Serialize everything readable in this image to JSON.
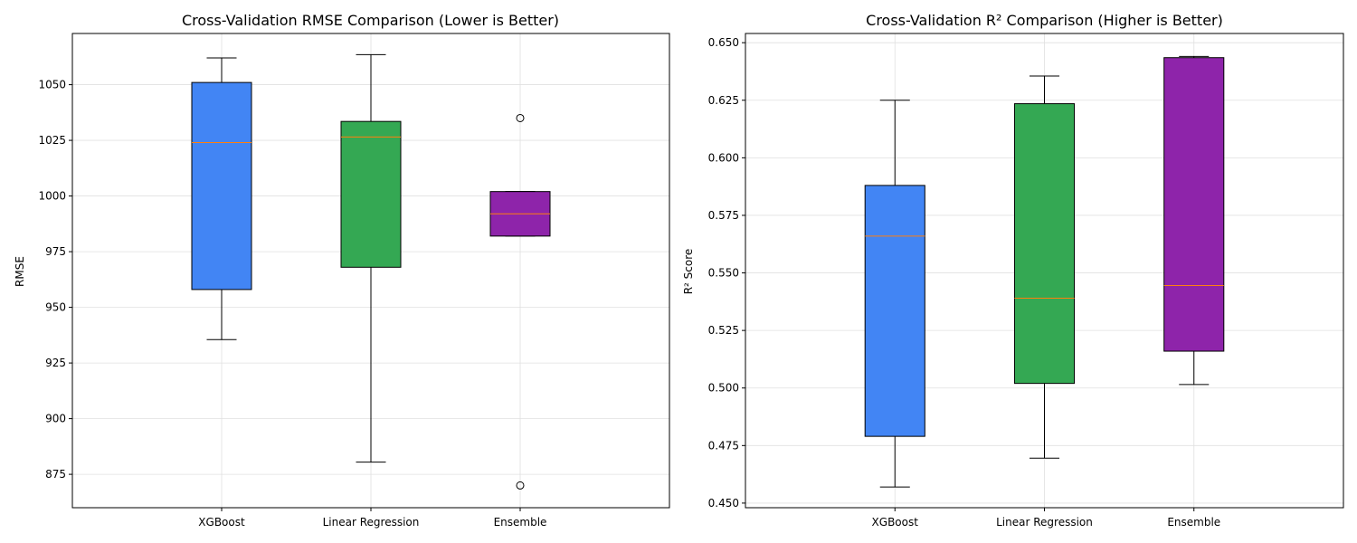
{
  "chart_data": [
    {
      "type": "box",
      "title": "Cross-Validation RMSE Comparison (Lower is Better)",
      "xlabel": "",
      "ylabel": "RMSE",
      "ylim": [
        860,
        1073
      ],
      "yticks": [
        875,
        900,
        925,
        950,
        975,
        1000,
        1025,
        1050
      ],
      "grid": true,
      "categories": [
        "XGBoost",
        "Linear Regression",
        "Ensemble"
      ],
      "colors": [
        "#4285f4",
        "#34a853",
        "#8e24aa"
      ],
      "median_color": "#ff7f0e",
      "boxes": [
        {
          "name": "XGBoost",
          "whisker_low": 935.5,
          "q1": 958,
          "median": 1024,
          "q3": 1051,
          "whisker_high": 1062,
          "outliers": []
        },
        {
          "name": "Linear Regression",
          "whisker_low": 880.5,
          "q1": 968,
          "median": 1026.5,
          "q3": 1033.5,
          "whisker_high": 1063.5,
          "outliers": []
        },
        {
          "name": "Ensemble",
          "whisker_low": 982,
          "q1": 982,
          "median": 992,
          "q3": 1002,
          "whisker_high": 1002,
          "outliers": [
            1035,
            870
          ]
        }
      ]
    },
    {
      "type": "box",
      "title": "Cross-Validation R² Comparison (Higher is Better)",
      "xlabel": "",
      "ylabel": "R² Score",
      "ylim": [
        0.448,
        0.654
      ],
      "yticks": [
        0.45,
        0.475,
        0.5,
        0.525,
        0.55,
        0.575,
        0.6,
        0.625,
        0.65
      ],
      "ytick_labels": [
        "0.450",
        "0.475",
        "0.500",
        "0.525",
        "0.550",
        "0.575",
        "0.600",
        "0.625",
        "0.650"
      ],
      "grid": true,
      "categories": [
        "XGBoost",
        "Linear Regression",
        "Ensemble"
      ],
      "colors": [
        "#4285f4",
        "#34a853",
        "#8e24aa"
      ],
      "median_color": "#ff7f0e",
      "boxes": [
        {
          "name": "XGBoost",
          "whisker_low": 0.457,
          "q1": 0.479,
          "median": 0.566,
          "q3": 0.588,
          "whisker_high": 0.625,
          "outliers": []
        },
        {
          "name": "Linear Regression",
          "whisker_low": 0.4695,
          "q1": 0.502,
          "median": 0.539,
          "q3": 0.6235,
          "whisker_high": 0.6355,
          "outliers": []
        },
        {
          "name": "Ensemble",
          "whisker_low": 0.5015,
          "q1": 0.516,
          "median": 0.5445,
          "q3": 0.6435,
          "whisker_high": 0.644,
          "outliers": []
        }
      ]
    }
  ]
}
